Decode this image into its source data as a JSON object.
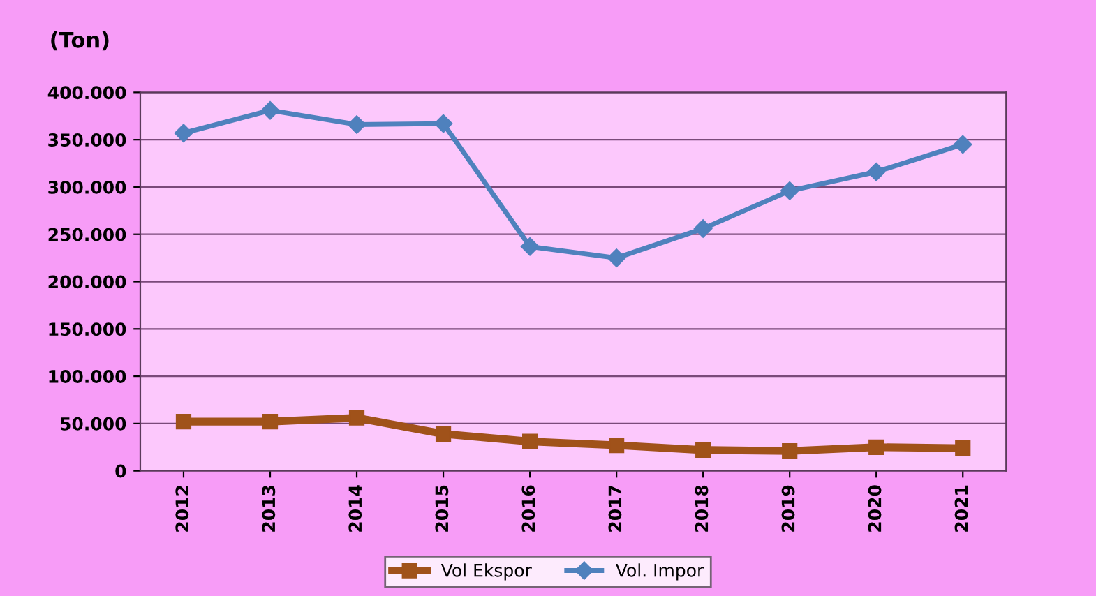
{
  "chart_data": {
    "type": "line",
    "ylabel": "(Ton)",
    "categories": [
      "2012",
      "2013",
      "2014",
      "2015",
      "2016",
      "2017",
      "2018",
      "2019",
      "2020",
      "2021"
    ],
    "series": [
      {
        "name": "Vol Ekspor",
        "color": "#a0521a",
        "marker": "square",
        "values": [
          52000,
          52000,
          56000,
          39000,
          31000,
          27000,
          22000,
          21000,
          25000,
          24000
        ]
      },
      {
        "name": "Vol. Impor",
        "color": "#4f81bd",
        "marker": "diamond",
        "values": [
          357000,
          381000,
          366000,
          367000,
          237000,
          225000,
          256000,
          296000,
          316000,
          345000
        ]
      }
    ],
    "ylim": [
      0,
      400000
    ],
    "yticks": [
      0,
      {
        "value": 50000,
        "label": "50.000"
      },
      {
        "value": 100000,
        "label": "100.000"
      },
      {
        "value": 150000,
        "label": "150.000"
      },
      {
        "value": 200000,
        "label": "200.000"
      },
      {
        "value": 250000,
        "label": "250.000"
      },
      {
        "value": 300000,
        "label": "300.000"
      },
      {
        "value": 350000,
        "label": "350.000"
      },
      {
        "value": 400000,
        "label": "400.000"
      }
    ],
    "grid": "y",
    "legend": "bottom"
  }
}
